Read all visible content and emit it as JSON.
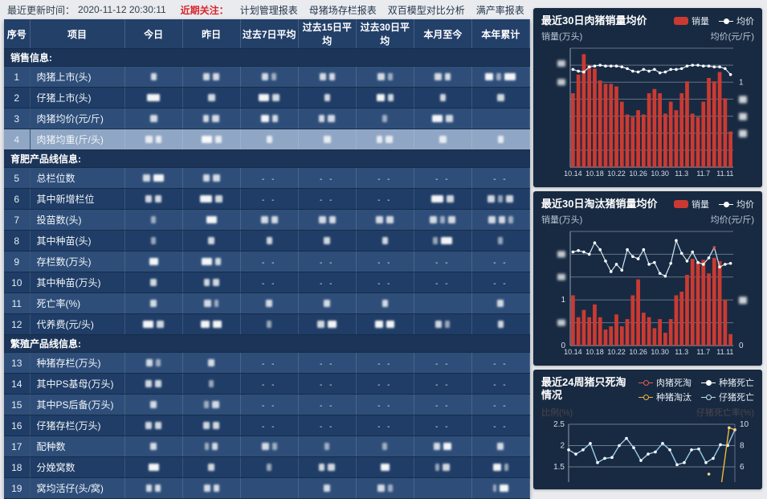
{
  "topbar": {
    "update_label": "最近更新时间：",
    "update_time": "2020-11-12 20:30:11",
    "focus_label": "近期关注：",
    "links": [
      "计划管理报表",
      "母猪场存栏报表",
      "双百模型对比分析",
      "满产率报表"
    ]
  },
  "table": {
    "columns": [
      "序号",
      "项目",
      "今日",
      "昨日",
      "过去7日平均",
      "过去15日平均",
      "过去30日平均",
      "本月至今",
      "本年累计"
    ],
    "redacted_note": "数值已模糊处理",
    "sections": [
      {
        "title": "销售信息:",
        "rows": [
          {
            "no": "1",
            "name": "肉猪上市(头)",
            "selected": false,
            "cells": [
              [
                7
              ],
              [
                8,
                8
              ],
              [
                8,
                6
              ],
              [
                8,
                7
              ],
              [
                9,
                6
              ],
              [
                9,
                7
              ],
              [
                10,
                6,
                14
              ]
            ]
          },
          {
            "no": "2",
            "name": "仔猪上市(头)",
            "selected": false,
            "cells": [
              [
                16
              ],
              [
                9
              ],
              [
                13,
                9
              ],
              [
                7
              ],
              [
                10,
                7
              ],
              [
                7
              ],
              [
                9
              ]
            ]
          },
          {
            "no": "3",
            "name": "肉猪均价(元/斤)",
            "selected": false,
            "cells": [
              [
                9
              ],
              [
                7,
                9
              ],
              [
                10,
                7
              ],
              [
                7,
                9
              ],
              [
                6
              ],
              [
                13,
                9
              ],
              []
            ]
          },
          {
            "no": "4",
            "name": "肉猪均重(斤/头)",
            "selected": true,
            "cells": [
              [
                9,
                7
              ],
              [
                13,
                8
              ],
              [
                7
              ],
              [
                9
              ],
              [
                7,
                9
              ],
              [
                9
              ],
              [
                7
              ]
            ]
          }
        ]
      },
      {
        "title": "育肥产品线信息:",
        "rows": [
          {
            "no": "5",
            "name": "总栏位数",
            "selected": false,
            "cells": [
              [
                9,
                13
              ],
              [
                8,
                9
              ],
              "--",
              "--",
              "--",
              "--",
              "--"
            ]
          },
          {
            "no": "6",
            "name": "其中新增栏位",
            "selected": false,
            "cells": [
              [
                8,
                8
              ],
              [
                15,
                9
              ],
              "--",
              "--",
              "--",
              [
                15,
                9
              ],
              [
                9,
                6,
                9
              ]
            ]
          },
          {
            "no": "7",
            "name": "投苗数(头)",
            "selected": false,
            "cells": [
              [
                6
              ],
              [
                13
              ],
              [
                9,
                8
              ],
              [
                9,
                8
              ],
              [
                9,
                9
              ],
              [
                9,
                6,
                9
              ],
              [
                9,
                8,
                6
              ]
            ]
          },
          {
            "no": "8",
            "name": "其中种苗(头)",
            "selected": false,
            "cells": [
              [
                6
              ],
              [
                8
              ],
              [
                7
              ],
              [
                8
              ],
              [
                7
              ],
              [
                6,
                14
              ],
              [
                6
              ]
            ]
          },
          {
            "no": "9",
            "name": "存栏数(万头)",
            "selected": false,
            "cells": [
              [
                11
              ],
              [
                13,
                7
              ],
              "--",
              "--",
              "--",
              "--",
              "--"
            ]
          },
          {
            "no": "10",
            "name": "其中种苗(万头)",
            "selected": false,
            "cells": [
              [
                8
              ],
              [
                7,
                8
              ],
              "--",
              "--",
              "--",
              "--",
              "--"
            ]
          },
          {
            "no": "11",
            "name": "死亡率(%)",
            "selected": false,
            "cells": [
              [
                8
              ],
              [
                9,
                5
              ],
              [
                8
              ],
              [
                8
              ],
              [
                7
              ],
              [],
              [
                8
              ]
            ]
          },
          {
            "no": "12",
            "name": "代养费(元/头)",
            "selected": false,
            "cells": [
              [
                13,
                9
              ],
              [
                11,
                11
              ],
              [
                6
              ],
              [
                9,
                11
              ],
              [
                10,
                10
              ],
              [
                8,
                6
              ],
              [
                7
              ]
            ]
          }
        ]
      },
      {
        "title": "繁殖产品线信息:",
        "rows": [
          {
            "no": "13",
            "name": "种猪存栏(万头)",
            "selected": false,
            "cells": [
              [
                8,
                6
              ],
              [
                8
              ],
              "--",
              "--",
              "--",
              "--",
              "--"
            ]
          },
          {
            "no": "14",
            "name": "其中PS基母(万头)",
            "selected": false,
            "cells": [
              [
                8,
                8
              ],
              [
                6
              ],
              "--",
              "--",
              "--",
              "--",
              "--"
            ]
          },
          {
            "no": "15",
            "name": "其中PS后备(万头)",
            "selected": false,
            "cells": [
              [
                8
              ],
              [
                6,
                9
              ],
              "--",
              "--",
              "--",
              "--",
              "--"
            ]
          },
          {
            "no": "16",
            "name": "仔猪存栏(万头)",
            "selected": false,
            "cells": [
              [
                8,
                8
              ],
              [
                8,
                8
              ],
              "--",
              "--",
              "--",
              "--",
              "--"
            ]
          },
          {
            "no": "17",
            "name": "配种数",
            "selected": false,
            "cells": [
              [
                8
              ],
              [
                5,
                7
              ],
              [
                9,
                6
              ],
              [
                6
              ],
              [
                6
              ],
              [
                8,
                10
              ],
              [
                8
              ]
            ]
          },
          {
            "no": "18",
            "name": "分娩窝数",
            "selected": false,
            "cells": [
              [
                13
              ],
              [
                8
              ],
              [
                6
              ],
              [
                7,
                9
              ],
              [
                11
              ],
              [
                5,
                9
              ],
              [
                10,
                5
              ]
            ]
          },
          {
            "no": "19",
            "name": "窝均活仔(头/窝)",
            "selected": false,
            "cells": [
              [
                7,
                7
              ],
              [
                8,
                7
              ],
              [],
              [
                8
              ],
              [
                9,
                6
              ],
              [],
              [
                4,
                11
              ]
            ]
          }
        ]
      }
    ]
  },
  "charts": [
    {
      "type": "bar+line",
      "title": "最近30日肉猪销量均价",
      "legend": [
        {
          "label": "销量",
          "marker": "bar",
          "color": "#cb3a32"
        },
        {
          "label": "均价",
          "marker": "line",
          "color": "#ffffff"
        }
      ],
      "y_left_label": "销量(万头)",
      "y_right_label": "均价(元/斤)",
      "x_labels": [
        "10.14",
        "10.18",
        "10.22",
        "10.26",
        "10.30",
        "11.3",
        "11.7",
        "11.11"
      ],
      "x_label_idx": [
        0,
        4,
        8,
        12,
        16,
        20,
        24,
        28
      ],
      "y_max": 1.4,
      "grid_step": 0.2,
      "bar_color": "#cb3a32",
      "bars": [
        0.87,
        1.09,
        1.33,
        1.2,
        1.16,
        1.02,
        0.98,
        0.98,
        0.95,
        0.77,
        0.62,
        0.59,
        0.67,
        0.62,
        0.87,
        0.92,
        0.87,
        0.63,
        0.77,
        0.67,
        0.87,
        1.01,
        0.63,
        0.59,
        0.77,
        1.05,
        1.01,
        1.12,
        0.81,
        0.42
      ],
      "line": [
        1.15,
        1.13,
        1.12,
        1.18,
        1.19,
        1.2,
        1.19,
        1.19,
        1.19,
        1.18,
        1.16,
        1.13,
        1.12,
        1.15,
        1.13,
        1.15,
        1.11,
        1.12,
        1.15,
        1.15,
        1.16,
        1.19,
        1.2,
        1.2,
        1.19,
        1.19,
        1.18,
        1.18,
        1.16,
        1.09
      ],
      "marker_idx": -1,
      "ticks_left": [
        {
          "v": 1.22,
          "blur": true
        },
        {
          "v": 1.0,
          "blur": true
        }
      ],
      "ticks_right": [
        {
          "v": 1.0,
          "t": "1"
        },
        {
          "v": 0.8,
          "blur": true
        },
        {
          "v": 0.6,
          "blur": true
        },
        {
          "v": 0.4,
          "blur": true
        }
      ]
    },
    {
      "type": "bar+line",
      "title": "最近30日淘汰猪销量均价",
      "legend": [
        {
          "label": "销量",
          "marker": "bar",
          "color": "#cb3a32"
        },
        {
          "label": "均价",
          "marker": "line",
          "color": "#ffffff"
        }
      ],
      "y_left_label": "销量(万头)",
      "y_right_label": "均价(元/斤)",
      "x_labels": [
        "10.14",
        "10.18",
        "10.22",
        "10.26",
        "10.30",
        "11.3",
        "11.7",
        "11.11"
      ],
      "x_label_idx": [
        0,
        4,
        8,
        12,
        16,
        20,
        24,
        28
      ],
      "y_max": 2.5,
      "grid_step": 0.5,
      "bar_color": "#cb3a32",
      "bars": [
        1.1,
        0.62,
        0.78,
        0.62,
        0.9,
        0.62,
        0.35,
        0.42,
        0.68,
        0.42,
        0.58,
        1.1,
        1.45,
        0.72,
        0.62,
        0.38,
        0.58,
        0.28,
        0.58,
        1.1,
        1.18,
        1.55,
        1.9,
        1.82,
        1.88,
        1.58,
        1.92,
        1.85,
        1.0,
        0.25
      ],
      "line": [
        2.05,
        2.08,
        2.05,
        2.0,
        2.25,
        2.1,
        1.85,
        1.62,
        1.78,
        1.65,
        2.1,
        1.95,
        1.9,
        2.1,
        1.78,
        1.82,
        1.58,
        1.52,
        1.8,
        2.3,
        2.02,
        1.85,
        2.05,
        1.82,
        1.78,
        1.92,
        2.15,
        1.72,
        1.78,
        1.8
      ],
      "marker_idx": 26,
      "ticks_left": [
        {
          "v": 2.0,
          "blur": true
        },
        {
          "v": 1.5,
          "blur": true
        },
        {
          "v": 1.0,
          "t": "1"
        },
        {
          "v": 0.5,
          "blur": true
        },
        {
          "v": 0.0,
          "t": "0"
        }
      ],
      "ticks_right": [
        {
          "v": 1.0,
          "blur": true
        },
        {
          "v": 0.0,
          "t": "0"
        }
      ]
    },
    {
      "type": "line",
      "title": "最近24周猪只死淘情况",
      "legend": [
        {
          "label": "肉猪死淘",
          "marker": "line",
          "color": "#e25c52"
        },
        {
          "label": "种猪死亡",
          "marker": "line",
          "color": "#ffffff"
        },
        {
          "label": "种猪淘汰",
          "marker": "line",
          "color": "#f2b63c"
        },
        {
          "label": "仔猪死亡",
          "marker": "line",
          "color": "#bfe0f2"
        }
      ],
      "y_left_label": "比例(%)",
      "y_right_label": "仔猪死亡率(%)",
      "ticks_left": [
        "2.5",
        "2",
        "1.5"
      ],
      "ticks_right": [
        "10",
        "8",
        "6"
      ],
      "blue_line": [
        1.9,
        1.8,
        1.9,
        2.05,
        1.6,
        1.7,
        1.72,
        2.0,
        2.17,
        1.95,
        1.65,
        1.8,
        1.85,
        2.05,
        1.9,
        1.55,
        1.6,
        1.9,
        1.92,
        1.6,
        1.7,
        2.02,
        2.0,
        2.37
      ],
      "orange_segment": {
        "x": [
          20.7,
          22.2,
          23.0
        ],
        "v": [
          0.55,
          2.42,
          2.37
        ]
      },
      "orange_dot": {
        "x": 19.4,
        "v": 1.33
      }
    }
  ]
}
